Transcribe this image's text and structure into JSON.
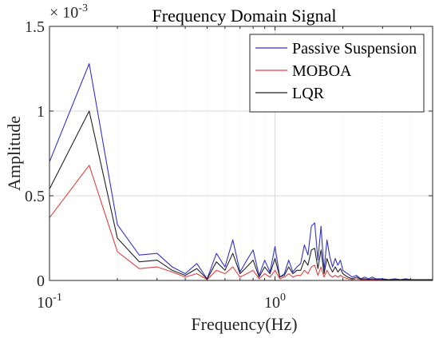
{
  "chart_data": {
    "type": "line",
    "title": "Frequency Domain Signal",
    "xlabel": "Frequency(Hz)",
    "ylabel": "Amplitude",
    "x_scale": "log",
    "xlim": [
      0.1,
      5
    ],
    "ylim": [
      0,
      0.0015
    ],
    "y_exponent_label": "× 10",
    "y_exponent_power": "-3",
    "x_ticks": [
      {
        "value": 0.1,
        "base": "10",
        "exp": "-1"
      },
      {
        "value": 1,
        "base": "10",
        "exp": "0"
      }
    ],
    "y_ticks": [
      {
        "value": 0,
        "label": "0"
      },
      {
        "value": 0.0005,
        "label": "0.5"
      },
      {
        "value": 0.001,
        "label": "1"
      },
      {
        "value": 0.0015,
        "label": "1.5"
      }
    ],
    "grid": true,
    "legend_position": "top-right",
    "x": [
      0.1,
      0.15,
      0.2,
      0.25,
      0.3,
      0.35,
      0.4,
      0.45,
      0.5,
      0.55,
      0.6,
      0.65,
      0.7,
      0.75,
      0.8,
      0.85,
      0.9,
      0.95,
      1.0,
      1.05,
      1.1,
      1.15,
      1.2,
      1.25,
      1.3,
      1.35,
      1.4,
      1.45,
      1.5,
      1.55,
      1.6,
      1.65,
      1.7,
      1.75,
      1.8,
      1.85,
      1.9,
      1.95,
      2.0,
      2.1,
      2.2,
      2.3,
      2.4,
      2.5,
      2.6,
      2.7,
      2.8,
      3.0,
      3.2,
      3.4,
      3.6,
      3.8,
      4.0,
      4.3,
      4.6,
      5.0
    ],
    "series": [
      {
        "name": "Passive Suspension",
        "color": "#3333cc",
        "values": [
          0.0007,
          0.00128,
          0.00033,
          0.00015,
          0.00016,
          8e-05,
          4e-05,
          0.0001,
          1e-05,
          0.00016,
          8e-05,
          0.00024,
          5e-05,
          0.00012,
          0.00018,
          3e-05,
          0.00012,
          5e-05,
          0.0002,
          2e-05,
          4e-05,
          0.00012,
          5e-05,
          8e-05,
          0.0001,
          0.00021,
          0.00015,
          0.00032,
          0.00034,
          0.00012,
          0.00032,
          6e-05,
          0.00024,
          0.00014,
          8e-05,
          0.00013,
          9e-05,
          0.00012,
          6e-05,
          4e-05,
          2e-05,
          3e-05,
          1e-05,
          2e-05,
          1e-05,
          2e-05,
          1e-05,
          1e-05,
          5e-06,
          1e-05,
          5e-06,
          1e-05,
          5e-06,
          5e-06,
          5e-06,
          5e-06
        ]
      },
      {
        "name": "MOBOA",
        "color": "#e04040",
        "values": [
          0.00037,
          0.00068,
          0.00017,
          7e-05,
          8e-05,
          5e-05,
          2e-05,
          4e-05,
          5e-06,
          6e-05,
          4e-05,
          8e-05,
          2e-05,
          4e-05,
          6e-05,
          1e-05,
          4e-05,
          2e-05,
          6e-05,
          1e-05,
          2e-05,
          4e-05,
          2e-05,
          3e-05,
          3e-05,
          6e-05,
          4e-05,
          8e-05,
          9e-05,
          3e-05,
          8e-05,
          2e-05,
          6e-05,
          3e-05,
          2e-05,
          3e-05,
          2e-05,
          3e-05,
          2e-05,
          1e-05,
          5e-06,
          1e-05,
          5e-06,
          5e-06,
          5e-06,
          5e-06,
          5e-06,
          3e-06,
          2e-06,
          3e-06,
          2e-06,
          3e-06,
          2e-06,
          2e-06,
          2e-06,
          2e-06
        ]
      },
      {
        "name": "LQR",
        "color": "#222222",
        "values": [
          0.00054,
          0.001,
          0.00025,
          0.00011,
          0.00012,
          6e-05,
          3e-05,
          7e-05,
          8e-06,
          0.00011,
          6e-05,
          0.00016,
          4e-05,
          8e-05,
          0.00012,
          2e-05,
          8e-05,
          4e-05,
          0.00013,
          2e-05,
          3e-05,
          8e-05,
          4e-05,
          6e-05,
          6e-05,
          0.00012,
          9e-05,
          0.00018,
          0.00019,
          7e-05,
          0.00018,
          4e-05,
          0.00013,
          8e-05,
          5e-05,
          8e-05,
          5e-05,
          7e-05,
          4e-05,
          2e-05,
          1e-05,
          2e-05,
          8e-06,
          1e-05,
          6e-06,
          1e-05,
          6e-06,
          6e-06,
          4e-06,
          6e-06,
          4e-06,
          6e-06,
          4e-06,
          4e-06,
          4e-06,
          4e-06
        ]
      }
    ]
  }
}
